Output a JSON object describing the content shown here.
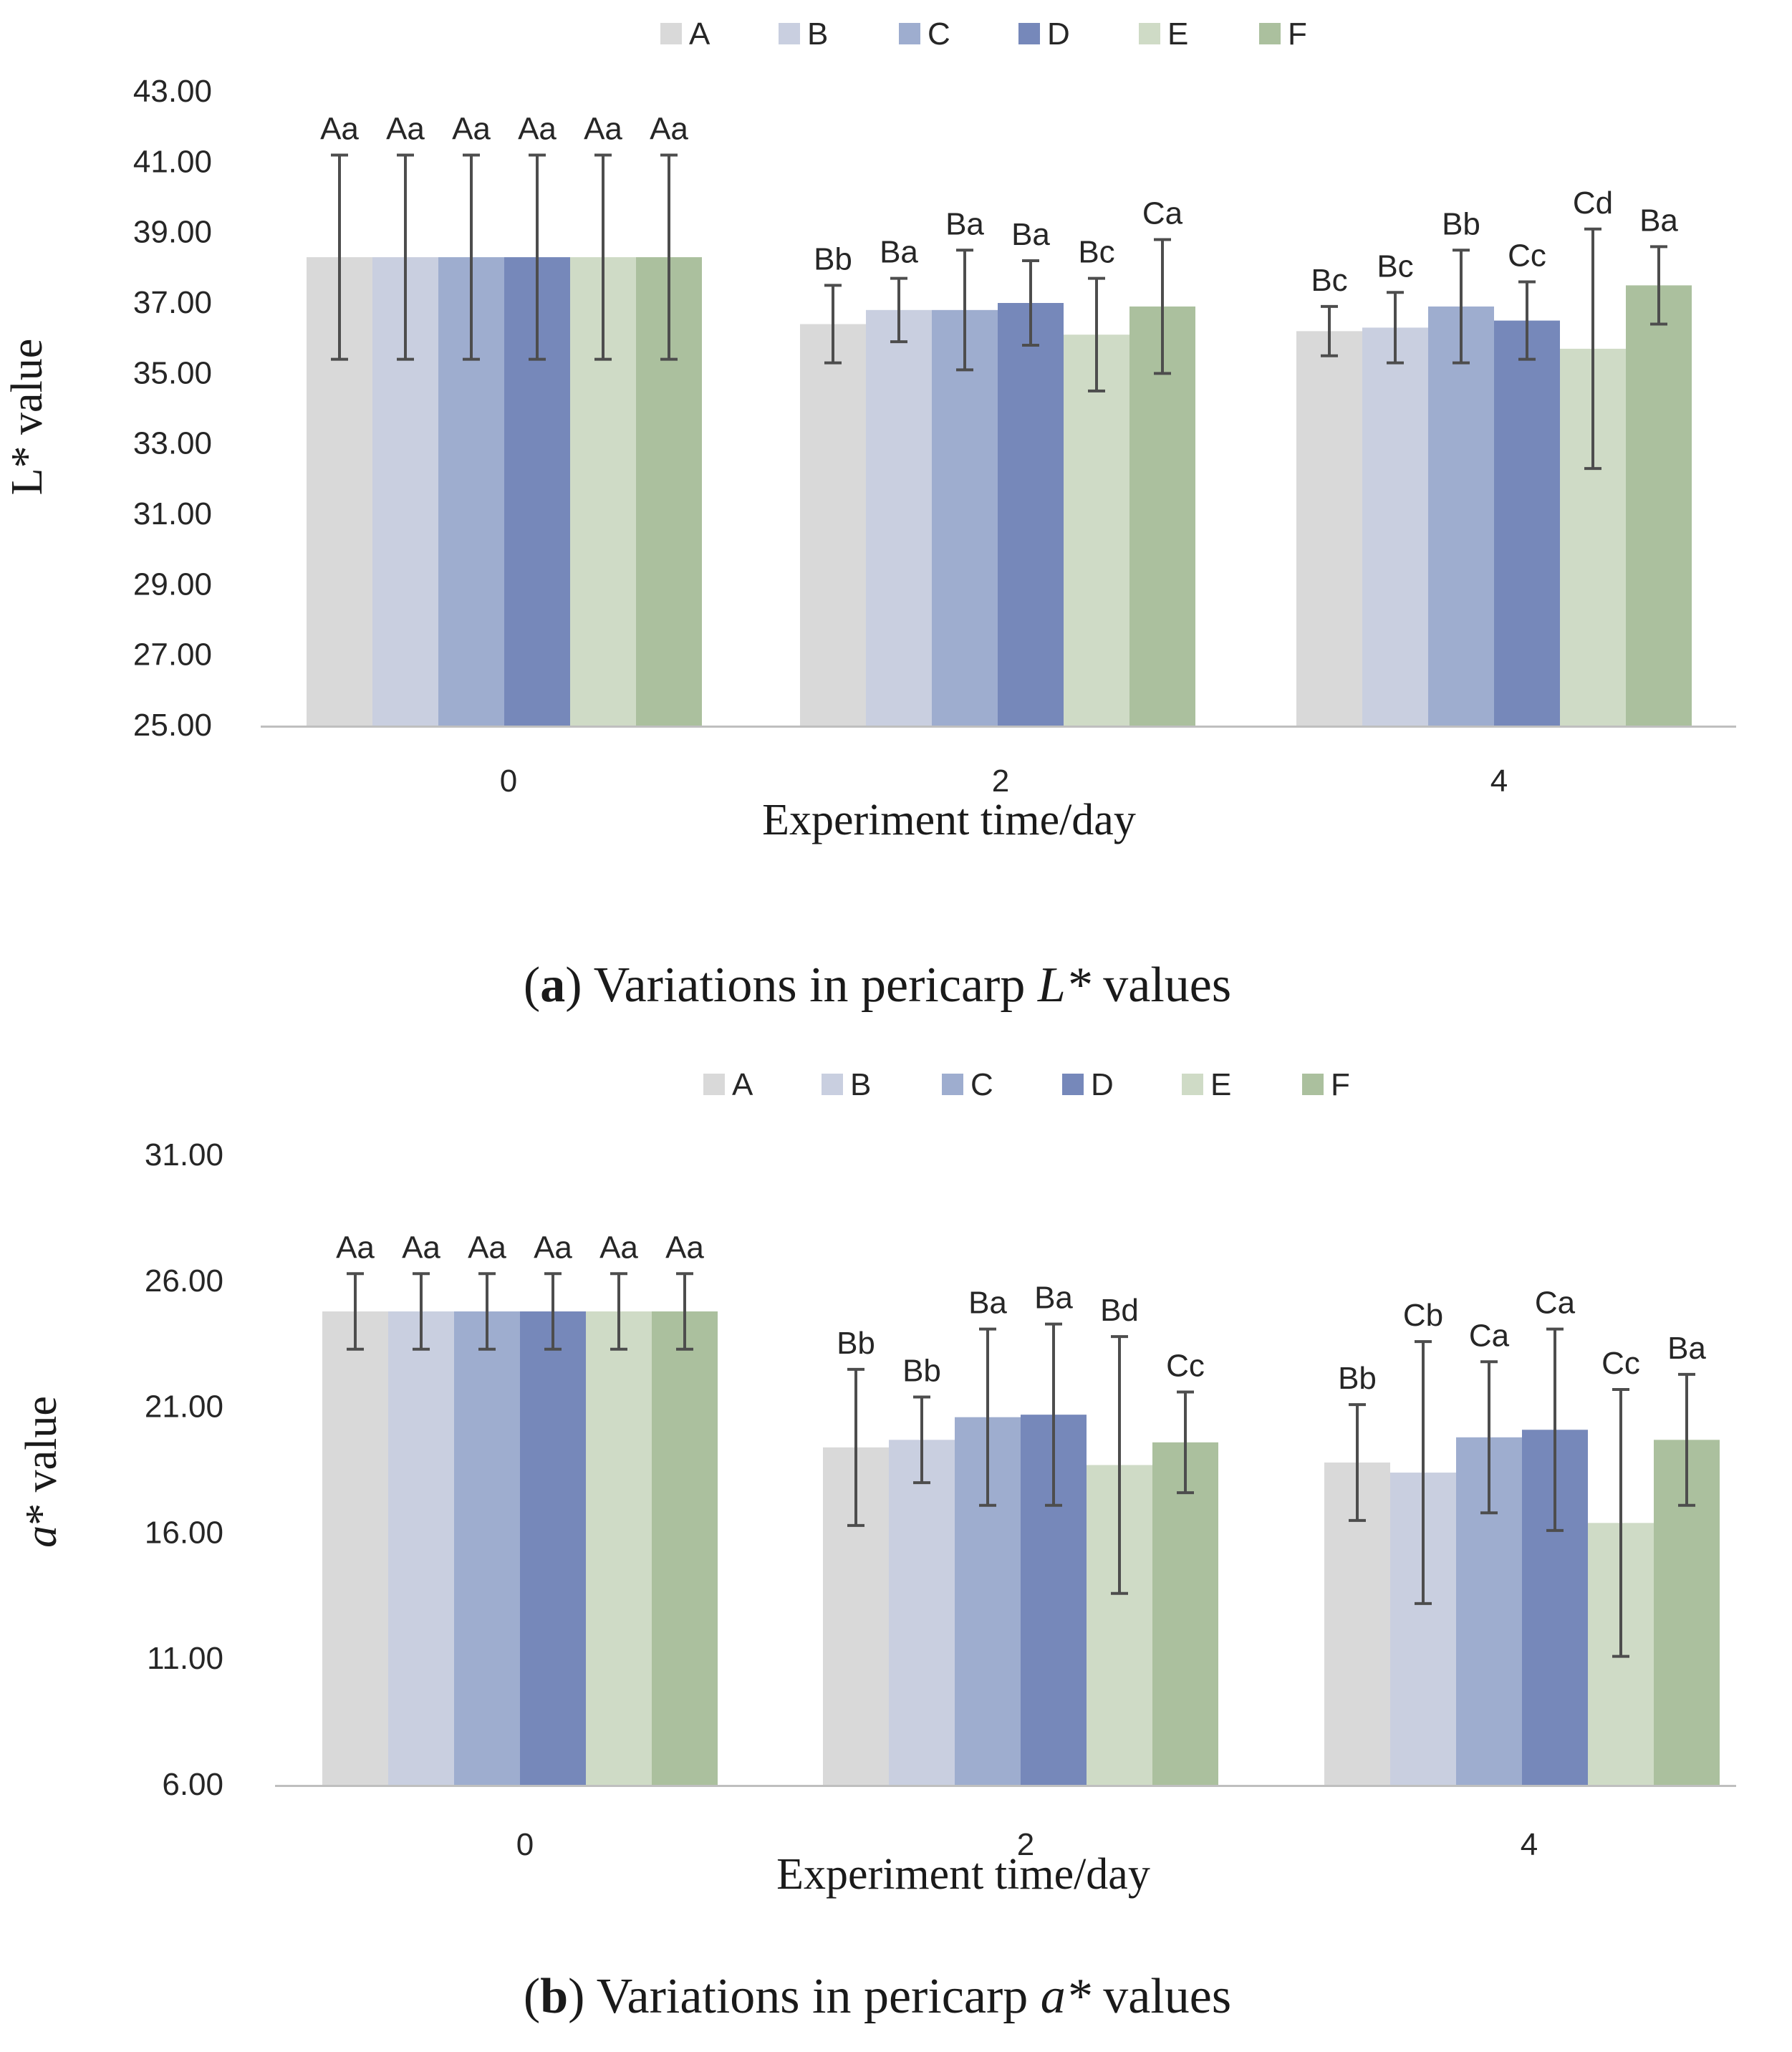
{
  "chart_data": [
    {
      "id": "a",
      "type": "bar",
      "categories": [
        "0",
        "2",
        "4"
      ],
      "series_names": [
        "A",
        "B",
        "C",
        "D",
        "E",
        "F"
      ],
      "series": [
        {
          "name": "A",
          "color": "#d9d9d9",
          "values": [
            38.3,
            36.4,
            36.2
          ],
          "errors": [
            2.9,
            1.1,
            0.7
          ],
          "letters": [
            "Aa",
            "Bb",
            "Bc"
          ]
        },
        {
          "name": "B",
          "color": "#c9cfe0",
          "values": [
            38.3,
            36.8,
            36.3
          ],
          "errors": [
            2.9,
            0.9,
            1.0
          ],
          "letters": [
            "Aa",
            "Ba",
            "Bc"
          ]
        },
        {
          "name": "C",
          "color": "#9eadcf",
          "values": [
            38.3,
            36.8,
            36.9
          ],
          "errors": [
            2.9,
            1.7,
            1.6
          ],
          "letters": [
            "Aa",
            "Ba",
            "Bb"
          ]
        },
        {
          "name": "D",
          "color": "#7688ba",
          "values": [
            38.3,
            37.0,
            36.5
          ],
          "errors": [
            2.9,
            1.2,
            1.1
          ],
          "letters": [
            "Aa",
            "Ba",
            "Cc"
          ]
        },
        {
          "name": "E",
          "color": "#cfdbc6",
          "values": [
            38.3,
            36.1,
            35.7
          ],
          "errors": [
            2.9,
            1.6,
            3.4
          ],
          "letters": [
            "Aa",
            "Bc",
            "Cd"
          ]
        },
        {
          "name": "F",
          "color": "#abc09e",
          "values": [
            38.3,
            36.9,
            37.5
          ],
          "errors": [
            2.9,
            1.9,
            1.1
          ],
          "letters": [
            "Aa",
            "Ca",
            "Ba"
          ]
        }
      ],
      "ylim": [
        25,
        43
      ],
      "yticks": [
        "25.00",
        "27.00",
        "29.00",
        "31.00",
        "33.00",
        "35.00",
        "37.00",
        "39.00",
        "41.00",
        "43.00"
      ],
      "xlabel": "Experiment time/day",
      "ylabel": "L* value",
      "caption_label": "a",
      "caption_text": "Variations in pericarp",
      "caption_var": "L*",
      "caption_tail": "values"
    },
    {
      "id": "b",
      "type": "bar",
      "categories": [
        "0",
        "2",
        "4"
      ],
      "series_names": [
        "A",
        "B",
        "C",
        "D",
        "E",
        "F"
      ],
      "series": [
        {
          "name": "A",
          "color": "#d9d9d9",
          "values": [
            24.8,
            19.4,
            18.8
          ],
          "errors": [
            1.5,
            3.1,
            2.3
          ],
          "letters": [
            "Aa",
            "Bb",
            "Bb"
          ]
        },
        {
          "name": "B",
          "color": "#c9cfe0",
          "values": [
            24.8,
            19.7,
            18.4
          ],
          "errors": [
            1.5,
            1.7,
            5.2
          ],
          "letters": [
            "Aa",
            "Bb",
            "Cb"
          ]
        },
        {
          "name": "C",
          "color": "#9eadcf",
          "values": [
            24.8,
            20.6,
            19.8
          ],
          "errors": [
            1.5,
            3.5,
            3.0
          ],
          "letters": [
            "Aa",
            "Ba",
            "Ca"
          ]
        },
        {
          "name": "D",
          "color": "#7688ba",
          "values": [
            24.8,
            20.7,
            20.1
          ],
          "errors": [
            1.5,
            3.6,
            4.0
          ],
          "letters": [
            "Aa",
            "Ba",
            "Ca"
          ]
        },
        {
          "name": "E",
          "color": "#cfdbc6",
          "values": [
            24.8,
            18.7,
            16.4
          ],
          "errors": [
            1.5,
            5.1,
            5.3
          ],
          "letters": [
            "Aa",
            "Bd",
            "Cc"
          ]
        },
        {
          "name": "F",
          "color": "#abc09e",
          "values": [
            24.8,
            19.6,
            19.7
          ],
          "errors": [
            1.5,
            2.0,
            2.6
          ],
          "letters": [
            "Aa",
            "Cc",
            "Ba"
          ]
        }
      ],
      "ylim": [
        6,
        31
      ],
      "yticks": [
        "6.00",
        "11.00",
        "16.00",
        "21.00",
        "26.00",
        "31.00"
      ],
      "xlabel": "Experiment time/day",
      "ylabel": "a* value",
      "caption_label": "b",
      "caption_text": "Variations in pericarp",
      "caption_var": "a*",
      "caption_tail": "values"
    }
  ]
}
